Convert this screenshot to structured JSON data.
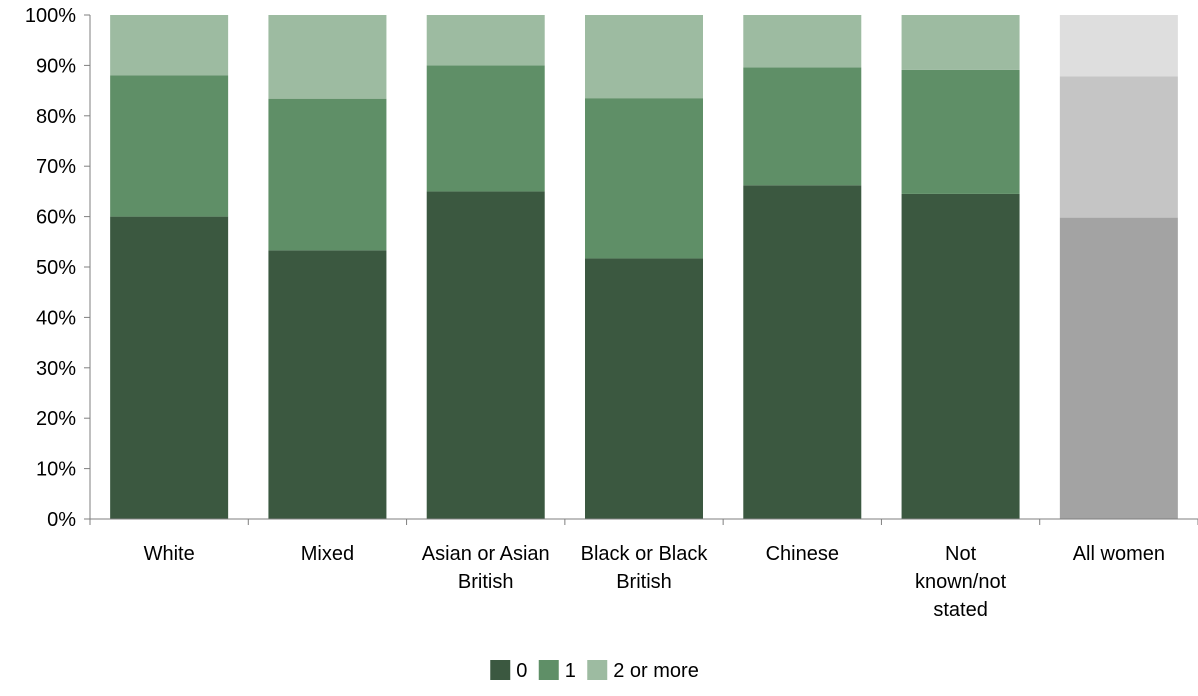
{
  "chart_data": {
    "type": "bar",
    "stacked": true,
    "title": "",
    "xlabel": "",
    "ylabel": "",
    "ylim": [
      0,
      100
    ],
    "y_ticks": [
      "0%",
      "10%",
      "20%",
      "30%",
      "40%",
      "50%",
      "60%",
      "70%",
      "80%",
      "90%",
      "100%"
    ],
    "grid": false,
    "legend_position": "bottom",
    "categories": [
      "White",
      "Mixed",
      "Asian or Asian British",
      "Black or Black British",
      "Chinese",
      "Not known/not stated",
      "All women"
    ],
    "category_label_lines": [
      [
        "White"
      ],
      [
        "Mixed"
      ],
      [
        "Asian or Asian",
        "British"
      ],
      [
        "Black or Black",
        "British"
      ],
      [
        "Chinese"
      ],
      [
        "Not",
        "known/not",
        "stated"
      ],
      [
        "All women"
      ]
    ],
    "series": [
      {
        "name": "0",
        "values": [
          60,
          53.3,
          65,
          51.7,
          66.2,
          64.5,
          59.8
        ]
      },
      {
        "name": "1",
        "values": [
          28,
          30.1,
          25,
          31.8,
          23.4,
          24.6,
          28
        ]
      },
      {
        "name": "2 or more",
        "values": [
          12,
          16.6,
          10,
          16.5,
          10.4,
          10.9,
          12.2
        ]
      }
    ],
    "colors": {
      "series": [
        "#3b5840",
        "#5f8f67",
        "#9dbba1"
      ],
      "highlight_category": "All women",
      "highlight_colors": [
        "#a3a3a3",
        "#c5c5c5",
        "#dedede"
      ],
      "axis": "#7f7f7f"
    }
  }
}
